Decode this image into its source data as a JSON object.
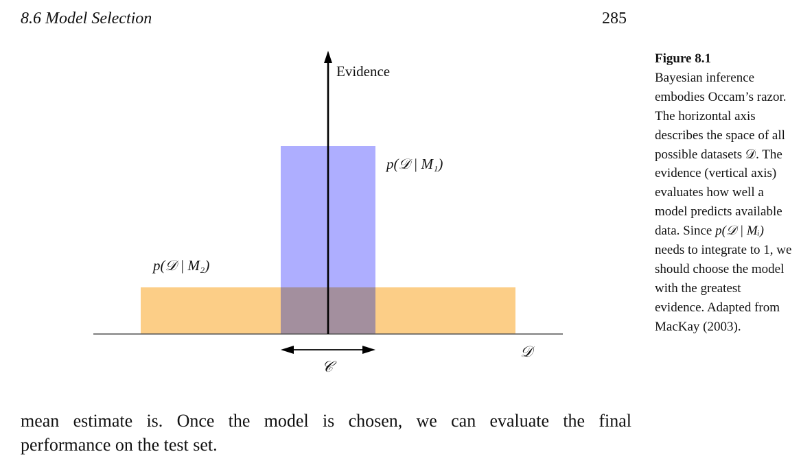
{
  "header": {
    "section": "8.6 Model Selection",
    "page_number": "285"
  },
  "figure": {
    "axis_label": "Evidence",
    "model1_label": "p(𝒟 | M₁)",
    "model2_label": "p(𝒟 | M₂)",
    "region_label": "𝒞",
    "dataset_axis_label": "𝒟",
    "colors": {
      "model1_fill": "#9a9aff",
      "model2_fill": "#fcc97a",
      "overlap": "#a38f9e"
    }
  },
  "caption": {
    "label": "Figure 8.1",
    "text_before_math": "Bayesian inference embodies Occam’s razor. The horizontal axis describes the space of all possible datasets 𝒟. The evidence (vertical axis) evaluates how well a model predicts available data. Since ",
    "math": "p(𝒟 | Mᵢ)",
    "text_after_math": " needs to integrate to 1, we should choose the model with the greatest evidence. Adapted from MacKay (2003)."
  },
  "body": {
    "line1": "mean estimate is. Once the model is chosen, we can evaluate the final",
    "line2": "performance on the test set."
  }
}
